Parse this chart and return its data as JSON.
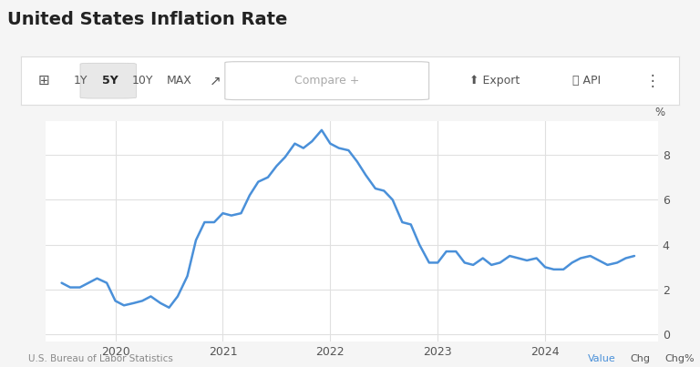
{
  "title": "United States Inflation Rate",
  "subtitle_toolbar": "1Y  5Y  10Y  MAX",
  "ylabel": "%",
  "source": "U.S. Bureau of Labor Statistics",
  "background_color": "#f5f5f5",
  "chart_bg": "#ffffff",
  "line_color": "#4a90d9",
  "grid_color": "#e0e0e0",
  "yticks": [
    0,
    2,
    4,
    6,
    8
  ],
  "ylim": [
    -0.3,
    9.5
  ],
  "xtick_labels": [
    "2020",
    "2021",
    "2022",
    "2023",
    "2024"
  ],
  "data": {
    "dates_numeric": [
      0.0,
      0.08,
      0.17,
      0.25,
      0.33,
      0.42,
      0.5,
      0.58,
      0.67,
      0.75,
      0.83,
      0.92,
      1.0,
      1.08,
      1.17,
      1.25,
      1.33,
      1.42,
      1.5,
      1.58,
      1.67,
      1.75,
      1.83,
      1.92,
      2.0,
      2.08,
      2.17,
      2.25,
      2.33,
      2.42,
      2.5,
      2.58,
      2.67,
      2.75,
      2.83,
      2.92,
      3.0,
      3.08,
      3.17,
      3.25,
      3.33,
      3.42,
      3.5,
      3.58,
      3.67,
      3.75,
      3.83,
      3.92,
      4.0,
      4.08,
      4.17,
      4.25,
      4.33,
      4.42,
      4.5,
      4.58,
      4.67,
      4.75,
      4.83,
      4.92,
      5.0,
      5.08,
      5.17,
      5.25,
      5.33
    ],
    "values": [
      2.3,
      2.1,
      2.1,
      2.3,
      2.5,
      2.3,
      1.5,
      1.3,
      1.4,
      1.5,
      1.7,
      1.4,
      1.2,
      1.7,
      2.6,
      4.2,
      5.0,
      5.0,
      5.4,
      5.3,
      5.4,
      6.2,
      6.8,
      7.0,
      7.5,
      7.9,
      8.5,
      8.3,
      8.6,
      9.1,
      8.5,
      8.3,
      8.2,
      7.7,
      7.1,
      6.5,
      6.4,
      6.0,
      5.0,
      4.9,
      4.0,
      3.2,
      3.2,
      3.7,
      3.7,
      3.2,
      3.1,
      3.4,
      3.1,
      3.2,
      3.5,
      3.4,
      3.3,
      3.4,
      3.0,
      2.9,
      2.9,
      3.2,
      3.4,
      3.5,
      3.3,
      3.1,
      3.2,
      3.4,
      3.5
    ]
  }
}
